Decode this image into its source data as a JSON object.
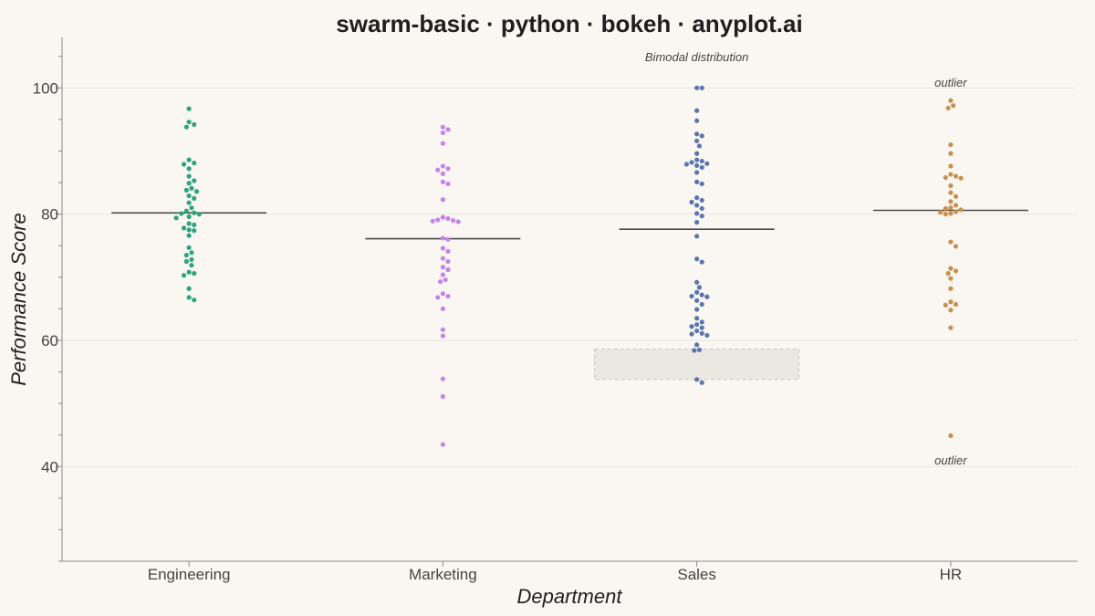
{
  "chart_data": {
    "type": "scatter",
    "subtype": "swarm",
    "title": "swarm-basic · python · bokeh · anyplot.ai",
    "xlabel": "Department",
    "ylabel": "Performance Score",
    "ylim": [
      25,
      108
    ],
    "yticks": [
      40,
      60,
      80,
      100
    ],
    "grid": "horizontal",
    "categories": [
      "Engineering",
      "Marketing",
      "Sales",
      "HR"
    ],
    "series": [
      {
        "color": "#2ea37e",
        "mean": 80.2,
        "values": [
          96.7,
          94.6,
          94.2,
          93.8,
          88.6,
          88.1,
          87.9,
          87.2,
          86.0,
          85.3,
          84.9,
          84.1,
          83.8,
          83.6,
          82.9,
          82.5,
          81.8,
          81.0,
          80.5,
          80.2,
          80.1,
          80.0,
          79.6,
          79.4,
          78.5,
          78.3,
          77.8,
          77.5,
          77.4,
          76.6,
          74.7,
          73.9,
          73.5,
          72.8,
          72.5,
          71.9,
          70.8,
          70.6,
          70.3,
          68.2,
          66.8,
          66.4
        ]
      },
      {
        "color": "#c783ea",
        "mean": 76.1,
        "values": [
          93.8,
          93.4,
          92.9,
          91.2,
          87.6,
          87.2,
          87.0,
          86.4,
          85.1,
          84.8,
          82.3,
          79.5,
          79.3,
          79.1,
          79.0,
          78.9,
          78.8,
          76.2,
          76.0,
          74.6,
          74.1,
          73.0,
          72.5,
          71.6,
          71.2,
          70.4,
          69.6,
          69.3,
          67.4,
          67.0,
          66.8,
          65.0,
          61.7,
          60.7,
          53.9,
          51.1,
          43.5
        ]
      },
      {
        "color": "#5a76ad",
        "mean": 77.6,
        "values": [
          100.0,
          100.0,
          96.4,
          94.8,
          92.7,
          92.4,
          91.6,
          90.8,
          89.6,
          88.6,
          88.4,
          88.2,
          88.0,
          87.9,
          87.7,
          87.4,
          86.6,
          85.1,
          84.8,
          82.6,
          82.2,
          81.9,
          81.4,
          80.9,
          80.1,
          79.7,
          78.7,
          76.5,
          72.9,
          72.4,
          69.2,
          68.4,
          67.6,
          67.2,
          67.0,
          66.9,
          66.3,
          65.7,
          64.9,
          63.5,
          62.9,
          62.5,
          62.2,
          62.0,
          61.5,
          61.1,
          61.0,
          60.8,
          59.3,
          58.5,
          58.4,
          53.8,
          53.3
        ]
      },
      {
        "color": "#c8904c",
        "mean": 80.6,
        "values": [
          98.0,
          97.2,
          96.8,
          91.0,
          89.6,
          87.6,
          86.3,
          86.0,
          85.8,
          85.7,
          84.5,
          83.4,
          82.8,
          82.0,
          81.4,
          81.0,
          80.9,
          80.7,
          80.4,
          80.3,
          80.1,
          80.0,
          75.6,
          74.9,
          71.4,
          71.0,
          70.6,
          69.8,
          68.2,
          66.1,
          65.7,
          65.6,
          64.8,
          62.0,
          44.9
        ]
      }
    ],
    "annotations": [
      {
        "text": "Bimodal distribution",
        "category": "Sales",
        "y": 104.8
      },
      {
        "text": "outlier",
        "category": "HR",
        "y": 100.8
      },
      {
        "text": "outlier",
        "category": "HR",
        "y": 40.9
      }
    ],
    "highlight_band": {
      "category": "Sales",
      "y_range": [
        53.8,
        58.6
      ],
      "color": "#ebe8e2"
    }
  }
}
